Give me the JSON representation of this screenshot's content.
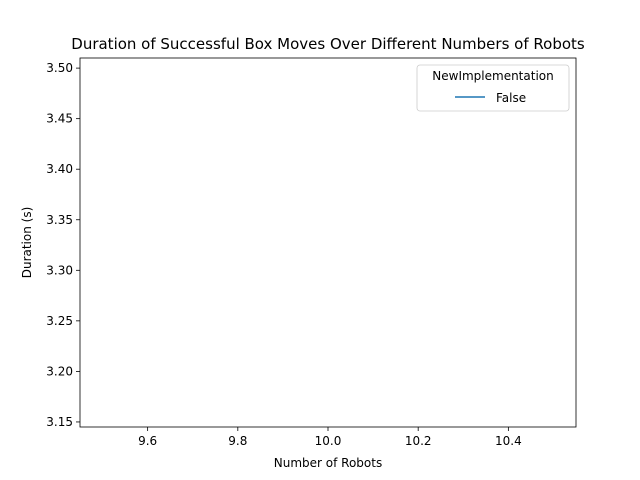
{
  "chart_data": {
    "type": "line",
    "title": "Duration of Successful Box Moves Over Different Numbers of Robots",
    "xlabel": "Number of Robots",
    "ylabel": "Duration (s)",
    "xlim": [
      9.45,
      10.55
    ],
    "ylim": [
      3.145,
      3.51
    ],
    "xticks": [
      9.6,
      9.8,
      10.0,
      10.2,
      10.4
    ],
    "xtick_labels": [
      "9.6",
      "9.8",
      "10.0",
      "10.2",
      "10.4"
    ],
    "yticks": [
      3.15,
      3.2,
      3.25,
      3.3,
      3.35,
      3.4,
      3.45,
      3.5
    ],
    "ytick_labels": [
      "3.15",
      "3.20",
      "3.25",
      "3.30",
      "3.35",
      "3.40",
      "3.45",
      "3.50"
    ],
    "legend_title": "NewImplementation",
    "legend_placement": "top-right",
    "grid": false,
    "series": [
      {
        "name": "False",
        "color": "#1f77b4",
        "x": [],
        "y": []
      }
    ]
  }
}
